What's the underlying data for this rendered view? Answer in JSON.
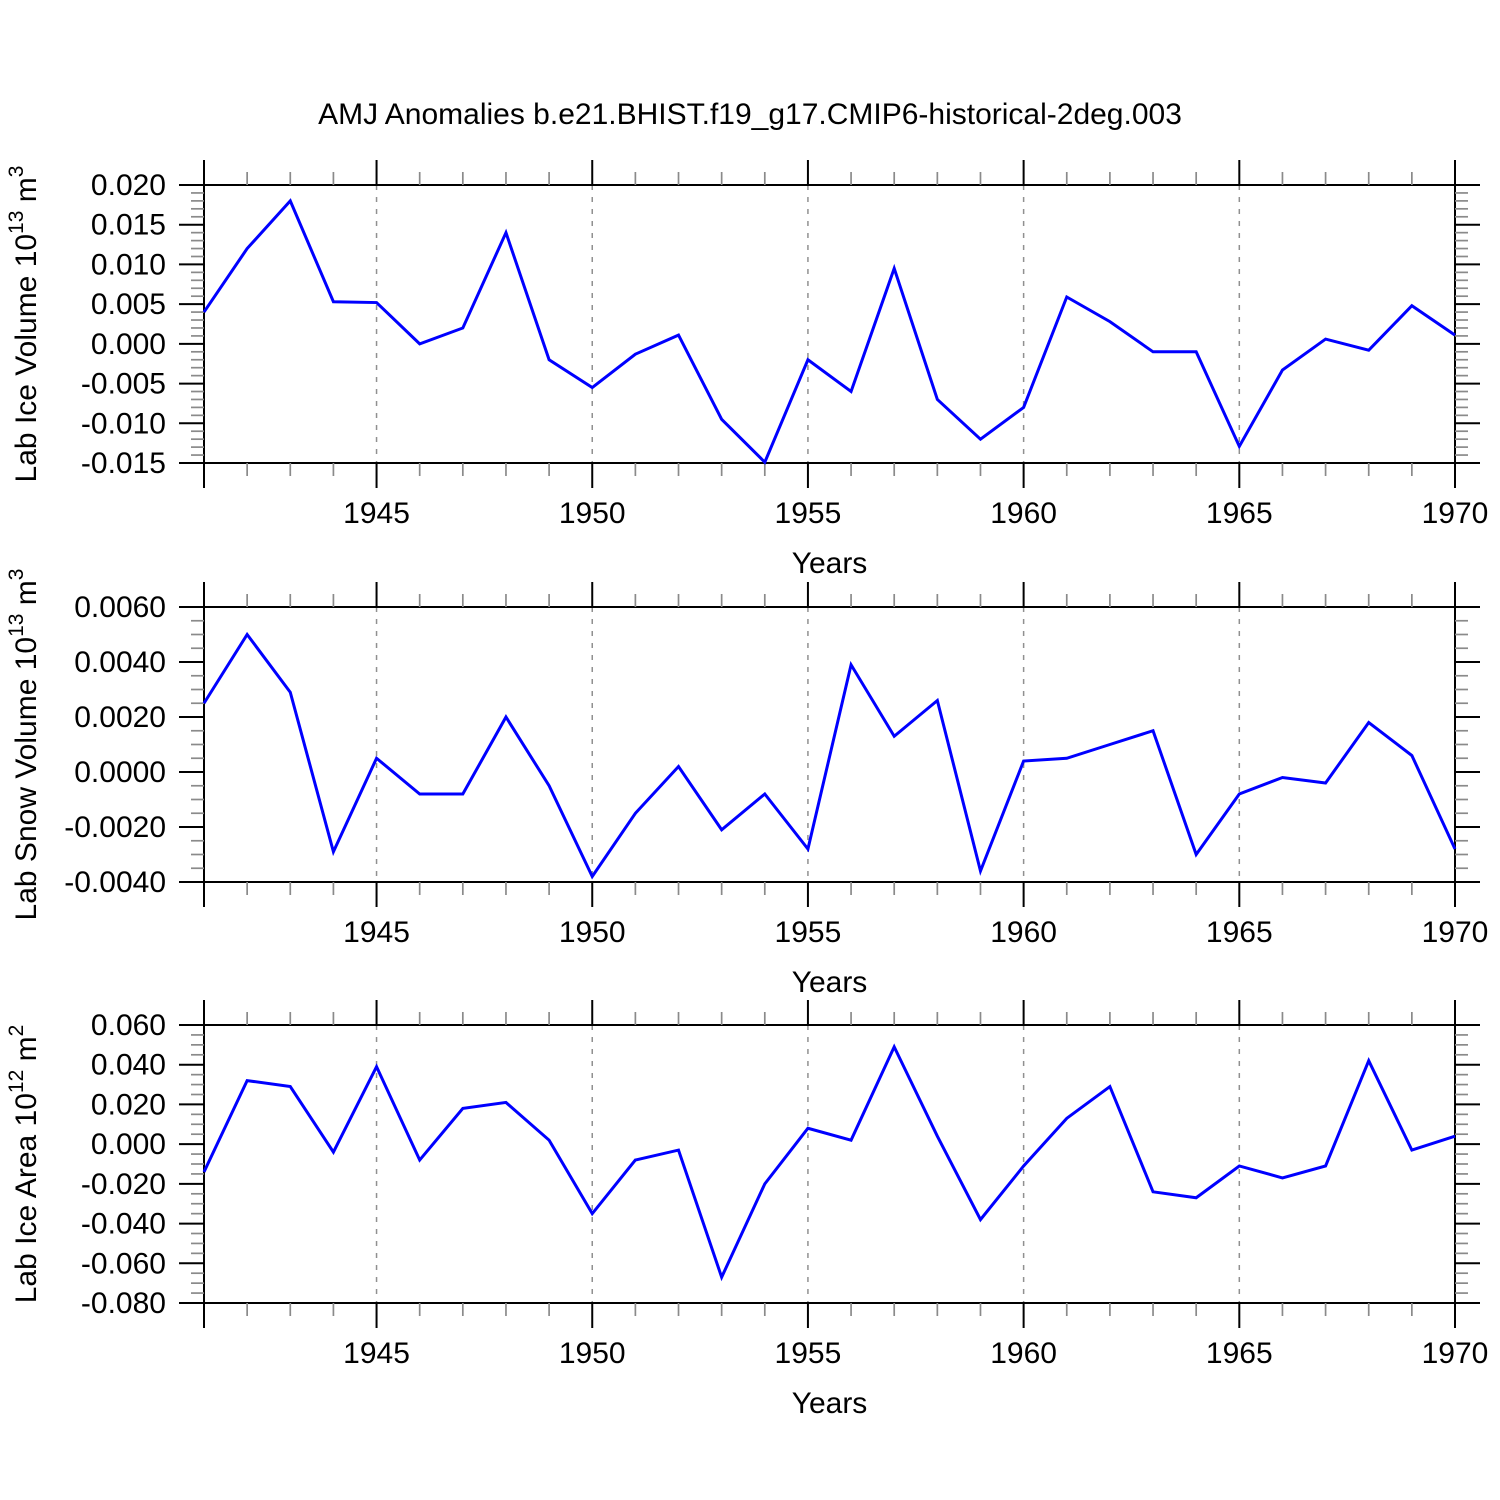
{
  "title": "AMJ Anomalies b.e21.BHIST.f19_g17.CMIP6-historical-2deg.003",
  "line_color": "#0000ff",
  "xlabel": "Years",
  "years": [
    1941,
    1942,
    1943,
    1944,
    1945,
    1946,
    1947,
    1948,
    1949,
    1950,
    1951,
    1952,
    1953,
    1954,
    1955,
    1956,
    1957,
    1958,
    1959,
    1960,
    1961,
    1962,
    1963,
    1964,
    1965,
    1966,
    1967,
    1968,
    1969,
    1970
  ],
  "xticks_labeled": [
    1945,
    1950,
    1955,
    1960,
    1965,
    1970
  ],
  "grid_years": [
    1945,
    1950,
    1955,
    1960,
    1965
  ],
  "chart_data": [
    {
      "type": "line",
      "name": "lab-ice-volume",
      "ylabel": {
        "base": "Lab Ice Volume 10",
        "exp": "13",
        "unit": " m",
        "unit_exp": "3"
      },
      "ylim": [
        -0.015,
        0.02
      ],
      "ytick_major": 0.005,
      "ytick_minor": 0.001,
      "ytick_labels": [
        "0.020",
        "0.015",
        "0.010",
        "0.005",
        "0.000",
        "-0.005",
        "-0.010",
        "-0.015"
      ],
      "xlim": [
        1941,
        1970
      ],
      "grid": "vertical-dashed",
      "legend": "none",
      "values": [
        0.004,
        0.012,
        0.018,
        0.0053,
        0.0052,
        0.0,
        0.002,
        0.014,
        -0.002,
        -0.0055,
        -0.0013,
        0.0011,
        -0.0095,
        -0.0149,
        -0.002,
        -0.006,
        0.0095,
        -0.007,
        -0.012,
        -0.008,
        0.0059,
        0.0028,
        -0.001,
        -0.001,
        -0.0129,
        -0.0033,
        0.0006,
        -0.0008,
        0.0048,
        0.0011
      ]
    },
    {
      "type": "line",
      "name": "lab-snow-volume",
      "ylabel": {
        "base": "Lab Snow Volume 10",
        "exp": "13",
        "unit": " m",
        "unit_exp": "3"
      },
      "ylim": [
        -0.004,
        0.006
      ],
      "ytick_major": 0.002,
      "ytick_minor": 0.0005,
      "ytick_labels": [
        "0.0060",
        "0.0040",
        "0.0020",
        "0.0000",
        "-0.0020",
        "-0.0040"
      ],
      "xlim": [
        1941,
        1970
      ],
      "grid": "vertical-dashed",
      "legend": "none",
      "values": [
        0.0025,
        0.005,
        0.0029,
        -0.0029,
        0.0005,
        -0.0008,
        -0.0008,
        0.002,
        -0.0005,
        -0.0038,
        -0.0015,
        0.0002,
        -0.0021,
        -0.0008,
        -0.0028,
        0.0039,
        0.0013,
        0.0026,
        -0.0036,
        0.0004,
        0.0005,
        0.001,
        0.0015,
        -0.003,
        -0.0008,
        -0.0002,
        -0.0004,
        0.0018,
        0.0006,
        -0.0028
      ]
    },
    {
      "type": "line",
      "name": "lab-ice-area",
      "ylabel": {
        "base": "Lab Ice Area 10",
        "exp": "12",
        "unit": " m",
        "unit_exp": "2"
      },
      "ylim": [
        -0.08,
        0.06
      ],
      "ytick_major": 0.02,
      "ytick_minor": 0.005,
      "ytick_labels": [
        "0.060",
        "0.040",
        "0.020",
        "0.000",
        "-0.020",
        "-0.040",
        "-0.060",
        "-0.080"
      ],
      "xlim": [
        1941,
        1970
      ],
      "grid": "vertical-dashed",
      "legend": "none",
      "values": [
        -0.014,
        0.032,
        0.029,
        -0.004,
        0.039,
        -0.008,
        0.018,
        0.021,
        0.002,
        -0.035,
        -0.008,
        -0.003,
        -0.067,
        -0.02,
        0.008,
        0.002,
        0.049,
        0.004,
        -0.038,
        -0.011,
        0.013,
        0.029,
        -0.024,
        -0.027,
        -0.011,
        -0.017,
        -0.011,
        0.042,
        -0.003,
        0.004
      ]
    }
  ]
}
